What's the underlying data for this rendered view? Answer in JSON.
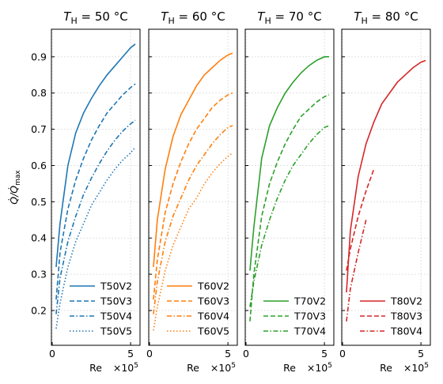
{
  "chart_data": [
    {
      "type": "line",
      "title": [
        "T",
        "H",
        " = 50 °C"
      ],
      "ylabel": [
        "Q̇/Q̇",
        "max"
      ],
      "xlabel": "Re",
      "x_offset": [
        "×10",
        "5"
      ],
      "xlim": [
        -0.05,
        5.6
      ],
      "xticks": [
        0,
        5
      ],
      "ylim": [
        0.104,
        0.976
      ],
      "yticks": [
        0.2,
        0.3,
        0.4,
        0.5,
        0.6,
        0.7,
        0.8,
        0.9
      ],
      "grid": true,
      "legend": "lower right",
      "x": [
        0.25,
        0.5,
        1,
        1.5,
        2,
        2.5,
        3,
        3.5,
        4,
        4.5,
        5,
        5.3
      ],
      "series": [
        {
          "name": "T50V2",
          "color": "#1f77b4",
          "linestyle": "solid",
          "values": [
            0.32,
            0.44,
            0.6,
            0.69,
            0.745,
            0.785,
            0.82,
            0.85,
            0.875,
            0.9,
            0.925,
            0.935
          ]
        },
        {
          "name": "T50V3",
          "color": "#1f77b4",
          "linestyle": "dashed",
          "values": [
            0.23,
            0.36,
            0.48,
            0.56,
            0.62,
            0.67,
            0.71,
            0.745,
            0.77,
            0.795,
            0.815,
            0.825
          ]
        },
        {
          "name": "T50V4",
          "color": "#1f77b4",
          "linestyle": "dashdot",
          "values": [
            0.19,
            0.29,
            0.39,
            0.46,
            0.52,
            0.565,
            0.605,
            0.64,
            0.67,
            0.695,
            0.715,
            0.725
          ]
        },
        {
          "name": "T50V5",
          "color": "#1f77b4",
          "linestyle": "dotted",
          "values": [
            0.15,
            0.22,
            0.32,
            0.39,
            0.44,
            0.49,
            0.525,
            0.56,
            0.59,
            0.615,
            0.635,
            0.65
          ]
        }
      ]
    },
    {
      "type": "line",
      "title": [
        "T",
        "H",
        " = 60 °C"
      ],
      "xlabel": "Re",
      "x_offset": [
        "×10",
        "5"
      ],
      "xlim": [
        -0.05,
        5.6
      ],
      "xticks": [
        0,
        5
      ],
      "grid": true,
      "legend": "lower right",
      "x": [
        0.25,
        0.5,
        1,
        1.5,
        2,
        2.5,
        3,
        3.5,
        4,
        4.5,
        5,
        5.3
      ],
      "series": [
        {
          "name": "T60V2",
          "color": "#ff7f0e",
          "linestyle": "solid",
          "values": [
            0.32,
            0.45,
            0.59,
            0.68,
            0.74,
            0.78,
            0.82,
            0.85,
            0.87,
            0.89,
            0.905,
            0.91
          ]
        },
        {
          "name": "T60V3",
          "color": "#ff7f0e",
          "linestyle": "dashed",
          "values": [
            0.23,
            0.34,
            0.47,
            0.55,
            0.61,
            0.66,
            0.7,
            0.73,
            0.76,
            0.78,
            0.795,
            0.8
          ]
        },
        {
          "name": "T60V4",
          "color": "#ff7f0e",
          "linestyle": "dashdot",
          "values": [
            0.19,
            0.28,
            0.39,
            0.46,
            0.51,
            0.56,
            0.6,
            0.63,
            0.66,
            0.685,
            0.705,
            0.71
          ]
        },
        {
          "name": "T60V5",
          "color": "#ff7f0e",
          "linestyle": "dotted",
          "values": [
            0.145,
            0.21,
            0.31,
            0.38,
            0.43,
            0.48,
            0.51,
            0.55,
            0.58,
            0.605,
            0.625,
            0.635
          ]
        }
      ]
    },
    {
      "type": "line",
      "title": [
        "T",
        "H",
        " = 70 °C"
      ],
      "xlabel": "Re",
      "x_offset": [
        "×10",
        "5"
      ],
      "xlim": [
        -0.05,
        5.6
      ],
      "xticks": [
        0,
        5
      ],
      "grid": true,
      "legend": "lower right",
      "x": [
        0.25,
        0.5,
        1,
        1.5,
        2,
        2.5,
        3,
        3.5,
        4,
        4.5,
        5,
        5.3
      ],
      "series": [
        {
          "name": "T70V2",
          "color": "#2ca02c",
          "linestyle": "solid",
          "values": [
            0.31,
            0.43,
            0.62,
            0.71,
            0.76,
            0.8,
            0.83,
            0.855,
            0.875,
            0.89,
            0.9,
            0.9
          ]
        },
        {
          "name": "T70V3",
          "color": "#2ca02c",
          "linestyle": "dashed",
          "values": [
            0.17,
            0.3,
            0.46,
            0.55,
            0.61,
            0.66,
            0.7,
            0.735,
            0.755,
            0.775,
            0.79,
            0.795
          ]
        },
        {
          "name": "T70V4",
          "color": "#2ca02c",
          "linestyle": "dashdot",
          "values": [
            0.21,
            0.28,
            0.38,
            0.45,
            0.51,
            0.56,
            0.6,
            0.63,
            0.66,
            0.685,
            0.705,
            0.71
          ]
        }
      ]
    },
    {
      "type": "line",
      "title": [
        "T",
        "H",
        " = 80 °C"
      ],
      "xlabel": "Re",
      "x_offset": [
        "×10",
        "5"
      ],
      "xlim": [
        -0.05,
        5.6
      ],
      "xticks": [
        0,
        5
      ],
      "grid": true,
      "legend": "lower right",
      "x": [
        0.25,
        0.5,
        1,
        1.5,
        2,
        2.5,
        3,
        3.5,
        4,
        4.5,
        5,
        5.3
      ],
      "series": [
        {
          "name": "T80V2",
          "color": "#d62728",
          "linestyle": "solid",
          "values": [
            0.25,
            0.42,
            0.57,
            0.66,
            0.72,
            0.77,
            0.8,
            0.83,
            0.85,
            0.87,
            0.885,
            0.89
          ]
        },
        {
          "name": "T80V3",
          "color": "#d62728",
          "linestyle": "dashed",
          "values": [
            0.31,
            0.37,
            0.46,
            0.53,
            0.59,
            null,
            null,
            null,
            null,
            null,
            null,
            null
          ]
        },
        {
          "name": "T80V4",
          "color": "#d62728",
          "linestyle": "dashdot",
          "values": [
            0.17,
            0.26,
            0.36,
            0.45,
            null,
            null,
            null,
            null,
            null,
            null,
            null,
            null
          ]
        }
      ]
    }
  ]
}
